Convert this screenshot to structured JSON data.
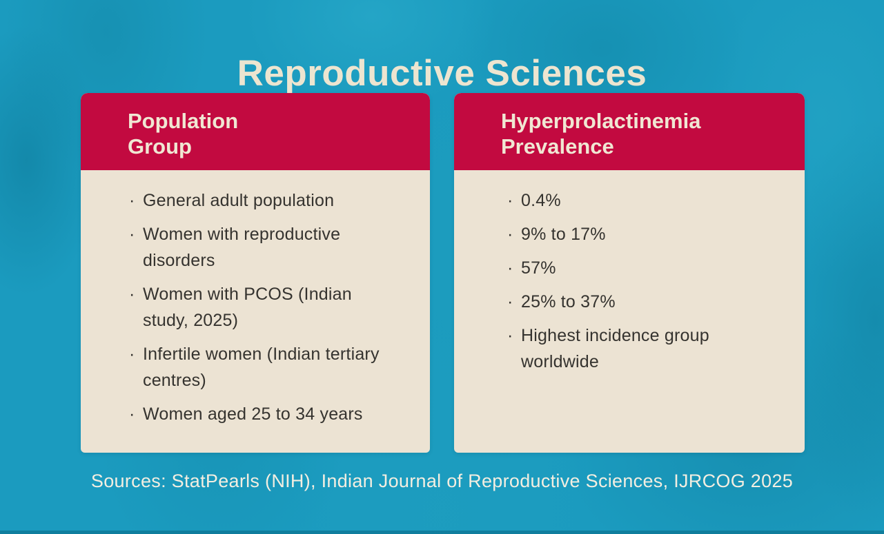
{
  "title": "Reproductive Sciences",
  "bullet_char": "·",
  "colors": {
    "background_teal": "#1B9BBF",
    "header_crimson": "#C20A40",
    "card_body_cream": "#ECE3D3",
    "title_cream": "#EDE5D0",
    "body_text": "#35332F"
  },
  "cards": [
    {
      "header": "Population\nGroup",
      "items": [
        "General adult population",
        "Women with reproductive\ndisorders",
        "Women with PCOS (Indian\nstudy, 2025)",
        "Infertile women (Indian tertiary\ncentres)",
        "Women aged 25 to 34 years"
      ]
    },
    {
      "header": "Hyperprolactinemia\nPrevalence",
      "items": [
        "0.4%",
        "9% to 17%",
        "57%",
        "25% to 37%",
        "Highest incidence group\nworldwide"
      ]
    }
  ],
  "footer": {
    "sources": "Sources: StatPearls (NIH), Indian Journal of Reproductive Sciences, IJRCOG 2025"
  }
}
